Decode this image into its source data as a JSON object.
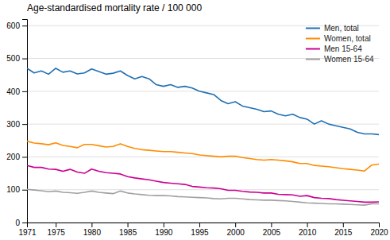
{
  "chart_data": {
    "type": "line",
    "title": "Age-standardised mortality rate / 100 000",
    "x": [
      1971,
      1972,
      1973,
      1974,
      1975,
      1976,
      1977,
      1978,
      1979,
      1980,
      1981,
      1982,
      1983,
      1984,
      1985,
      1986,
      1987,
      1988,
      1989,
      1990,
      1991,
      1992,
      1993,
      1994,
      1995,
      1996,
      1997,
      1998,
      1999,
      2000,
      2001,
      2002,
      2003,
      2004,
      2005,
      2006,
      2007,
      2008,
      2009,
      2010,
      2011,
      2012,
      2013,
      2014,
      2015,
      2016,
      2017,
      2018,
      2019,
      2020
    ],
    "series": [
      {
        "name": "Men, total",
        "color": "#2070b4",
        "values": [
          470,
          456,
          462,
          452,
          470,
          458,
          462,
          453,
          456,
          468,
          460,
          452,
          455,
          462,
          448,
          438,
          445,
          438,
          420,
          415,
          420,
          412,
          415,
          410,
          400,
          395,
          390,
          372,
          362,
          368,
          355,
          350,
          345,
          338,
          340,
          330,
          325,
          330,
          320,
          315,
          300,
          310,
          300,
          295,
          290,
          285,
          275,
          270,
          270,
          268
        ]
      },
      {
        "name": "Women, total",
        "color": "#ff8c00",
        "values": [
          248,
          242,
          240,
          237,
          243,
          235,
          232,
          228,
          238,
          238,
          234,
          230,
          232,
          240,
          232,
          226,
          222,
          220,
          218,
          216,
          216,
          214,
          212,
          210,
          206,
          204,
          202,
          200,
          202,
          202,
          198,
          195,
          192,
          190,
          192,
          190,
          188,
          185,
          180,
          180,
          174,
          172,
          170,
          167,
          164,
          162,
          160,
          157,
          175,
          178
        ]
      },
      {
        "name": "Men 15-64",
        "color": "#cc0090",
        "values": [
          174,
          168,
          168,
          163,
          162,
          156,
          162,
          154,
          150,
          163,
          156,
          152,
          150,
          148,
          140,
          136,
          133,
          130,
          126,
          122,
          120,
          118,
          116,
          110,
          108,
          106,
          105,
          103,
          98,
          98,
          95,
          93,
          92,
          90,
          90,
          86,
          85,
          84,
          80,
          82,
          76,
          74,
          73,
          70,
          68,
          66,
          64,
          62,
          62,
          63
        ]
      },
      {
        "name": "Women 15-64",
        "color": "#a0a0a0",
        "values": [
          101,
          99,
          97,
          94,
          96,
          92,
          91,
          89,
          92,
          96,
          92,
          90,
          88,
          96,
          90,
          87,
          85,
          83,
          82,
          82,
          81,
          79,
          78,
          77,
          76,
          75,
          73,
          72,
          74,
          74,
          72,
          70,
          69,
          68,
          68,
          67,
          66,
          64,
          62,
          60,
          59,
          58,
          57,
          57,
          56,
          55,
          54,
          53,
          57,
          57
        ]
      }
    ],
    "xlim": [
      1971,
      2020
    ],
    "xticks": [
      1971,
      1975,
      1980,
      1985,
      1990,
      1995,
      2000,
      2005,
      2010,
      2015,
      2020
    ],
    "ylim": [
      0,
      620
    ],
    "yticks": [
      0,
      100,
      200,
      300,
      400,
      500,
      600
    ],
    "grid": true,
    "legend": "upper right"
  }
}
